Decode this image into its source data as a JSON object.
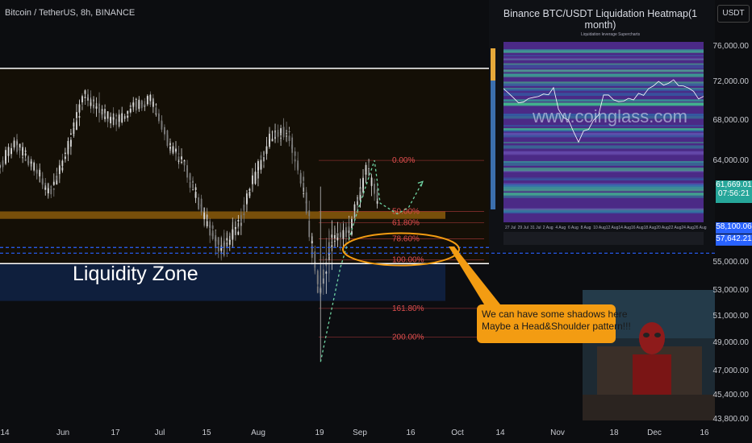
{
  "header": {
    "symbol": "Bitcoin / TetherUS, 8h, BINANCE"
  },
  "annotations": {
    "zone_label": "Liquidity Zone",
    "callout_line1": "We can have some shadows here",
    "callout_line2": "Maybe a Head&Shoulder pattern!!!"
  },
  "heatmap_inset": {
    "title": "Binance BTC/USDT Liquidation Heatmap(1 month)",
    "watermark": "www.coinglass.com",
    "legend": [
      "Liquidation leverage",
      "Supercharts"
    ],
    "x_ticks": [
      "27 Jul",
      "29 Jul",
      "31 Jul",
      "2 Aug",
      "4 Aug",
      "6 Aug",
      "8 Aug",
      "10 Aug",
      "12 Aug",
      "14 Aug",
      "16 Aug",
      "18 Aug",
      "20 Aug",
      "22 Aug",
      "24 Aug",
      "26 Aug"
    ]
  },
  "price_axis": {
    "unit_label": "USDT",
    "current_price": "61,669.01",
    "countdown": "07:56:21",
    "level_1": "58,100.06",
    "level_2": "57,642.21",
    "colors": {
      "current": "#26a69a",
      "level_1": "#2962ff",
      "level_2": "#2962ff"
    }
  },
  "chart_data": {
    "type": "candlestick",
    "y_ticks": [
      "76,000.00",
      "72,000.00",
      "68,000.00",
      "64,000.00",
      "55,000.00",
      "53,000.00",
      "51,000.00",
      "49,000.00",
      "47,000.00",
      "45,400.00",
      "43,800.00"
    ],
    "x_ticks": [
      "14",
      "Jun",
      "17",
      "Jul",
      "15",
      "Aug",
      "19",
      "Sep",
      "16",
      "Oct",
      "14",
      "Nov",
      "18",
      "Dec",
      "16"
    ],
    "fib_levels": [
      {
        "label": "0.00%",
        "price": 65100
      },
      {
        "label": "50.00%",
        "price": 61000
      },
      {
        "label": "61.80%",
        "price": 60100
      },
      {
        "label": "78.60%",
        "price": 58800
      },
      {
        "label": "100.00%",
        "price": 57100
      },
      {
        "label": "161.80%",
        "price": 53200
      },
      {
        "label": "200.00%",
        "price": 50900
      }
    ],
    "zones": [
      {
        "name": "Range box top",
        "price": 72500
      },
      {
        "name": "Range box bottom",
        "price": 56800
      },
      {
        "name": "Orange support band top",
        "price": 61000
      },
      {
        "name": "Orange support band bottom",
        "price": 60400
      }
    ],
    "dashed_levels": [
      58100,
      57642
    ],
    "path_series": [
      {
        "x": "2024-04-14",
        "o": 63000,
        "h": 65500,
        "l": 61500,
        "c": 64500
      },
      {
        "x": "2024-04-20",
        "o": 64500,
        "h": 67500,
        "l": 63500,
        "c": 66500
      },
      {
        "x": "2024-04-26",
        "o": 66500,
        "h": 68000,
        "l": 64000,
        "c": 64800
      },
      {
        "x": "2024-05-02",
        "o": 64800,
        "h": 66000,
        "l": 61000,
        "c": 62500
      },
      {
        "x": "2024-05-08",
        "o": 62500,
        "h": 66000,
        "l": 61500,
        "c": 65500
      },
      {
        "x": "2024-05-14",
        "o": 65500,
        "h": 71500,
        "l": 65000,
        "c": 70500
      },
      {
        "x": "2024-05-20",
        "o": 70500,
        "h": 71800,
        "l": 68000,
        "c": 69000
      },
      {
        "x": "2024-05-26",
        "o": 69000,
        "h": 70500,
        "l": 67000,
        "c": 68200
      },
      {
        "x": "2024-06-01",
        "o": 68200,
        "h": 70000,
        "l": 67500,
        "c": 69500
      },
      {
        "x": "2024-06-07",
        "o": 69500,
        "h": 71900,
        "l": 68500,
        "c": 70000
      },
      {
        "x": "2024-06-13",
        "o": 70000,
        "h": 70500,
        "l": 66000,
        "c": 66500
      },
      {
        "x": "2024-06-19",
        "o": 66500,
        "h": 67000,
        "l": 64000,
        "c": 64500
      },
      {
        "x": "2024-06-25",
        "o": 64500,
        "h": 65000,
        "l": 60000,
        "c": 61000
      },
      {
        "x": "2024-07-01",
        "o": 61000,
        "h": 63500,
        "l": 57000,
        "c": 58000
      },
      {
        "x": "2024-07-07",
        "o": 58000,
        "h": 60500,
        "l": 55200,
        "c": 59500
      },
      {
        "x": "2024-07-13",
        "o": 59500,
        "h": 64000,
        "l": 58500,
        "c": 63500
      },
      {
        "x": "2024-07-19",
        "o": 63500,
        "h": 68000,
        "l": 63000,
        "c": 67000
      },
      {
        "x": "2024-07-25",
        "o": 67000,
        "h": 70000,
        "l": 64000,
        "c": 67500
      },
      {
        "x": "2024-07-31",
        "o": 67500,
        "h": 68000,
        "l": 62000,
        "c": 62500
      },
      {
        "x": "2024-08-05",
        "o": 62500,
        "h": 63000,
        "l": 49000,
        "c": 54500
      },
      {
        "x": "2024-08-10",
        "o": 54500,
        "h": 62000,
        "l": 54000,
        "c": 58800
      },
      {
        "x": "2024-08-16",
        "o": 58800,
        "h": 61500,
        "l": 56500,
        "c": 59500
      },
      {
        "x": "2024-08-22",
        "o": 59500,
        "h": 65100,
        "l": 59000,
        "c": 64500
      },
      {
        "x": "2024-08-26",
        "o": 64500,
        "h": 64800,
        "l": 61500,
        "c": 61669
      }
    ],
    "projection": [
      {
        "x": "2024-08-26",
        "y": 61669
      },
      {
        "x": "2024-09-01",
        "y": 60800
      },
      {
        "x": "2024-09-05",
        "y": 61300
      },
      {
        "x": "2024-09-10",
        "y": 63400
      }
    ],
    "grid": false,
    "x_range": [
      "2024-04-14",
      "2024-12-22"
    ],
    "y_range": [
      43800,
      78000
    ]
  }
}
